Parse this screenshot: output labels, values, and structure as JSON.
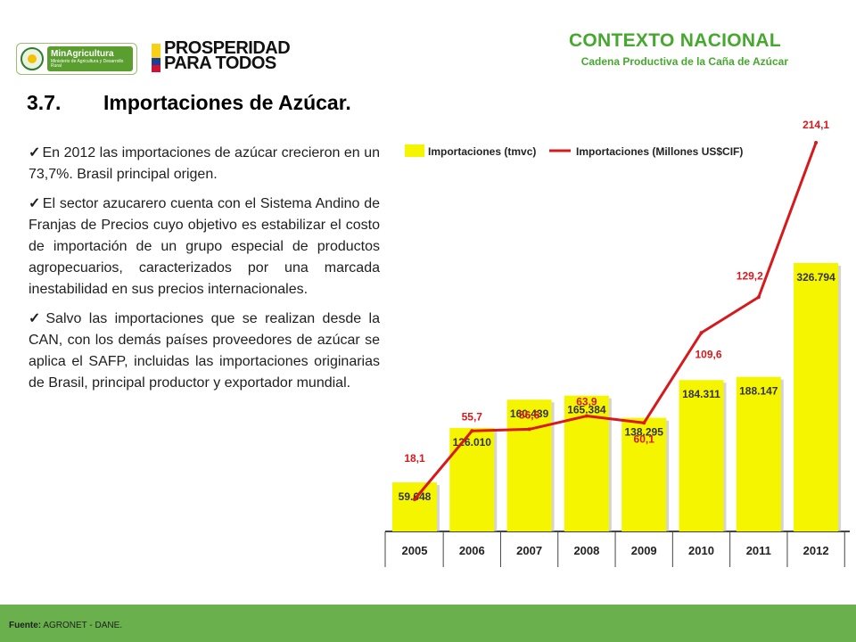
{
  "header": {
    "title": "CONTEXTO NACIONAL",
    "subtitle": "Cadena Productiva de la Caña de Azúcar",
    "logo_minagri": "MinAgricultura",
    "logo_minagri_sub": "Ministerio de Agricultura y Desarrollo Rural",
    "logo_prosperidad_line1": "PROSPERIDAD",
    "logo_prosperidad_line2": "PARA TODOS"
  },
  "section": {
    "number": "3.7.",
    "title": "Importaciones de Azúcar."
  },
  "bullets": [
    "En 2012 las importaciones de azúcar crecieron en un 73,7%. Brasil principal origen.",
    "El sector azucarero cuenta con el Sistema Andino de Franjas de Precios cuyo objetivo es estabilizar el costo de importación de un grupo especial de productos agropecuarios, caracterizados por una marcada inestabilidad en sus precios internacionales.",
    "Salvo las importaciones que se realizan desde la CAN, con los demás países proveedores de azúcar se aplica el SAFP, incluidas las importaciones originarias de Brasil, principal productor y exportador mundial."
  ],
  "footer": {
    "source_label": "Fuente:",
    "source_text": "AGRONET - DANE."
  },
  "colors": {
    "accent_green": "#46a82e",
    "footer_green": "#6ab04c",
    "bar_yellow": "#f5f500",
    "line_red": "#d7191c"
  },
  "chart_data": {
    "type": "bar",
    "categories": [
      "2005",
      "2006",
      "2007",
      "2008",
      "2009",
      "2010",
      "2011",
      "2012"
    ],
    "series": [
      {
        "name": "Importaciones (tmvc)",
        "type": "bar",
        "values": [
          59648,
          126010,
          160439,
          165384,
          138295,
          184311,
          188147,
          326794
        ],
        "labels": [
          "59.648",
          "126.010",
          "160.439",
          "165.384",
          "138.295",
          "184.311",
          "188.147",
          "326.794"
        ]
      },
      {
        "name": "Importaciones (Millones US$CIF)",
        "type": "line",
        "values": [
          18.1,
          55.7,
          56.6,
          63.9,
          60.1,
          109.6,
          129.2,
          214.1
        ],
        "labels": [
          "18,1",
          "55,7",
          "56,6",
          "63,9",
          "60,1",
          "109,6",
          "129,2",
          "214,1"
        ]
      }
    ],
    "legend_position": "top",
    "grid": false
  }
}
